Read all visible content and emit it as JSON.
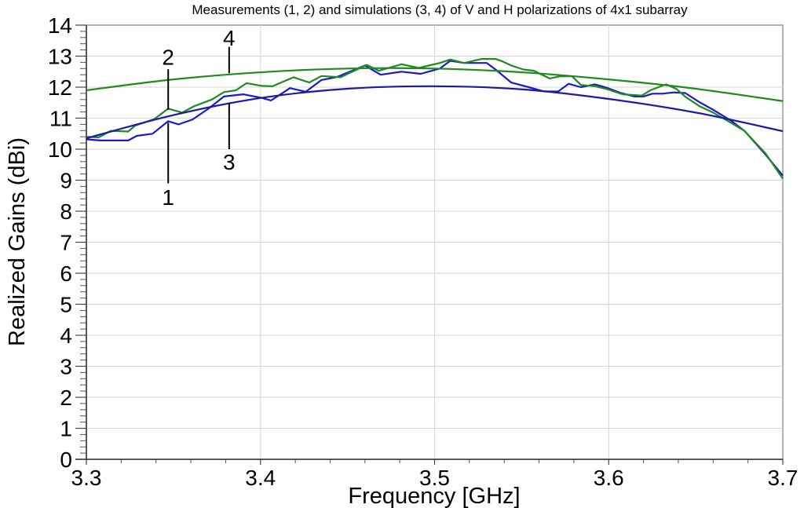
{
  "chart_data": {
    "type": "line",
    "title": "Measurements (1, 2) and simulations (3, 4) of V and H polarizations of 4x1 subarray",
    "xlabel": "Frequency [GHz]",
    "ylabel": "Realized Gains  (dBi)",
    "xlim": [
      3.3,
      3.7
    ],
    "ylim": [
      0,
      14
    ],
    "xticks": [
      "3.3",
      "3.4",
      "3.5",
      "3.6",
      "3.7"
    ],
    "xtick_values": [
      3.3,
      3.4,
      3.5,
      3.6,
      3.7
    ],
    "yticks": [
      "0",
      "1",
      "2",
      "3",
      "4",
      "5",
      "6",
      "7",
      "8",
      "9",
      "10",
      "11",
      "12",
      "13",
      "14"
    ],
    "ytick_values": [
      0,
      1,
      2,
      3,
      4,
      5,
      6,
      7,
      8,
      9,
      10,
      11,
      12,
      13,
      14
    ],
    "x_minor_step": 0.02,
    "y_minor_step": 0.2,
    "grid": true,
    "series": [
      {
        "name": "1",
        "kind": "measurement",
        "color": "#1a1acc",
        "points": [
          [
            3.3,
            10.32
          ],
          [
            3.308,
            10.28
          ],
          [
            3.324,
            10.28
          ],
          [
            3.329,
            10.43
          ],
          [
            3.338,
            10.5
          ],
          [
            3.347,
            10.9
          ],
          [
            3.353,
            10.8
          ],
          [
            3.361,
            10.96
          ],
          [
            3.37,
            11.3
          ],
          [
            3.379,
            11.7
          ],
          [
            3.39,
            11.77
          ],
          [
            3.401,
            11.65
          ],
          [
            3.406,
            11.57
          ],
          [
            3.417,
            11.97
          ],
          [
            3.426,
            11.85
          ],
          [
            3.435,
            12.23
          ],
          [
            3.444,
            12.33
          ],
          [
            3.46,
            12.7
          ],
          [
            3.469,
            12.4
          ],
          [
            3.481,
            12.5
          ],
          [
            3.492,
            12.43
          ],
          [
            3.503,
            12.6
          ],
          [
            3.509,
            12.85
          ],
          [
            3.517,
            12.78
          ],
          [
            3.53,
            12.78
          ],
          [
            3.535,
            12.57
          ],
          [
            3.544,
            12.15
          ],
          [
            3.554,
            12.0
          ],
          [
            3.563,
            11.86
          ],
          [
            3.571,
            11.86
          ],
          [
            3.577,
            12.11
          ],
          [
            3.584,
            12.0
          ],
          [
            3.592,
            12.09
          ],
          [
            3.599,
            11.98
          ],
          [
            3.607,
            11.81
          ],
          [
            3.615,
            11.7
          ],
          [
            3.62,
            11.7
          ],
          [
            3.625,
            11.79
          ],
          [
            3.631,
            11.79
          ],
          [
            3.637,
            11.83
          ],
          [
            3.644,
            11.81
          ],
          [
            3.652,
            11.52
          ],
          [
            3.66,
            11.27
          ],
          [
            3.67,
            10.93
          ],
          [
            3.678,
            10.59
          ],
          [
            3.69,
            9.83
          ],
          [
            3.7,
            9.15
          ]
        ]
      },
      {
        "name": "2",
        "kind": "measurement",
        "color": "#1f8a1f",
        "points": [
          [
            3.3,
            10.4
          ],
          [
            3.307,
            10.38
          ],
          [
            3.314,
            10.59
          ],
          [
            3.324,
            10.57
          ],
          [
            3.328,
            10.76
          ],
          [
            3.339,
            10.97
          ],
          [
            3.347,
            11.31
          ],
          [
            3.355,
            11.18
          ],
          [
            3.362,
            11.39
          ],
          [
            3.372,
            11.6
          ],
          [
            3.379,
            11.84
          ],
          [
            3.386,
            11.9
          ],
          [
            3.392,
            12.13
          ],
          [
            3.401,
            12.04
          ],
          [
            3.407,
            12.03
          ],
          [
            3.419,
            12.32
          ],
          [
            3.428,
            12.15
          ],
          [
            3.435,
            12.36
          ],
          [
            3.446,
            12.32
          ],
          [
            3.461,
            12.72
          ],
          [
            3.468,
            12.53
          ],
          [
            3.481,
            12.74
          ],
          [
            3.491,
            12.62
          ],
          [
            3.503,
            12.78
          ],
          [
            3.509,
            12.89
          ],
          [
            3.517,
            12.78
          ],
          [
            3.527,
            12.91
          ],
          [
            3.535,
            12.91
          ],
          [
            3.539,
            12.83
          ],
          [
            3.544,
            12.7
          ],
          [
            3.551,
            12.57
          ],
          [
            3.557,
            12.53
          ],
          [
            3.566,
            12.28
          ],
          [
            3.572,
            12.35
          ],
          [
            3.579,
            12.35
          ],
          [
            3.584,
            12.07
          ],
          [
            3.592,
            12.03
          ],
          [
            3.599,
            11.94
          ],
          [
            3.608,
            11.77
          ],
          [
            3.619,
            11.73
          ],
          [
            3.624,
            11.9
          ],
          [
            3.633,
            12.09
          ],
          [
            3.639,
            11.94
          ],
          [
            3.644,
            11.69
          ],
          [
            3.652,
            11.39
          ],
          [
            3.66,
            11.18
          ],
          [
            3.669,
            10.89
          ],
          [
            3.678,
            10.59
          ],
          [
            3.69,
            9.87
          ],
          [
            3.7,
            9.05
          ]
        ]
      },
      {
        "name": "3",
        "kind": "simulation",
        "color": "#1a1aaa",
        "points": [
          [
            3.3,
            10.35
          ],
          [
            3.35,
            11.1
          ],
          [
            3.4,
            11.65
          ],
          [
            3.45,
            11.95
          ],
          [
            3.5,
            12.03
          ],
          [
            3.55,
            11.93
          ],
          [
            3.6,
            11.62
          ],
          [
            3.65,
            11.18
          ],
          [
            3.7,
            10.58
          ]
        ]
      },
      {
        "name": "4",
        "kind": "simulation",
        "color": "#1f8a1f",
        "points": [
          [
            3.3,
            11.9
          ],
          [
            3.35,
            12.25
          ],
          [
            3.4,
            12.48
          ],
          [
            3.45,
            12.6
          ],
          [
            3.5,
            12.6
          ],
          [
            3.55,
            12.48
          ],
          [
            3.6,
            12.25
          ],
          [
            3.65,
            11.95
          ],
          [
            3.7,
            11.55
          ]
        ]
      }
    ],
    "annotations": [
      {
        "label": "1",
        "x": 3.347,
        "text_y": 8.45,
        "line_from": 10.85,
        "line_to": 8.9
      },
      {
        "label": "2",
        "x": 3.347,
        "text_y": 12.98,
        "line_from": 11.27,
        "line_to": 12.58
      },
      {
        "label": "3",
        "x": 3.382,
        "text_y": 9.6,
        "line_from": 11.5,
        "line_to": 10.0
      },
      {
        "label": "4",
        "x": 3.382,
        "text_y": 13.6,
        "line_from": 12.45,
        "line_to": 13.3
      }
    ]
  }
}
